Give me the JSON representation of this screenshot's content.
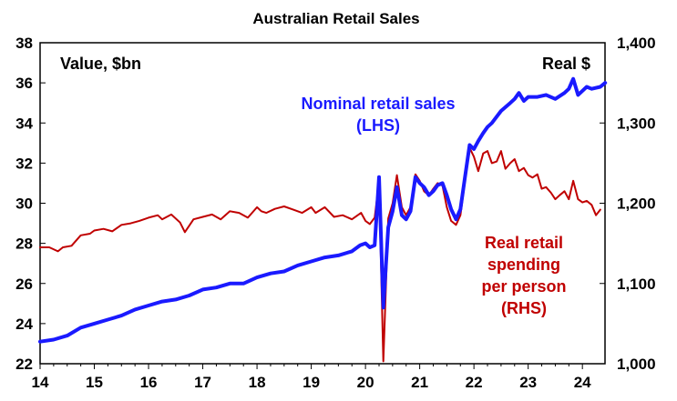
{
  "chart_data": {
    "type": "line",
    "title": "Australian Retail Sales",
    "left_axis_label": "Value, $bn",
    "right_axis_label": "Real $",
    "x_ticks": [
      "14",
      "15",
      "16",
      "17",
      "18",
      "19",
      "20",
      "21",
      "22",
      "23",
      "24"
    ],
    "ylim_left": [
      22,
      38
    ],
    "ylim_right": [
      1000,
      1400
    ],
    "y_ticks_left": [
      "22",
      "24",
      "26",
      "28",
      "30",
      "32",
      "34",
      "36",
      "38"
    ],
    "y_ticks_right": [
      "1,000",
      "1,100",
      "1,200",
      "1,300",
      "1,400"
    ],
    "x_range": [
      14.0,
      24.417
    ],
    "colors": {
      "nominal": "#1a1aff",
      "real": "#c00000",
      "axis": "#000000"
    },
    "series": [
      {
        "key": "nominal",
        "name_lines": [
          "Nominal retail sales",
          "(LHS)"
        ],
        "axis": "left",
        "points": [
          [
            14.0,
            23.1
          ],
          [
            14.25,
            23.2
          ],
          [
            14.5,
            23.4
          ],
          [
            14.75,
            23.8
          ],
          [
            15.0,
            24.0
          ],
          [
            15.25,
            24.2
          ],
          [
            15.5,
            24.4
          ],
          [
            15.75,
            24.7
          ],
          [
            16.0,
            24.9
          ],
          [
            16.25,
            25.1
          ],
          [
            16.5,
            25.2
          ],
          [
            16.75,
            25.4
          ],
          [
            17.0,
            25.7
          ],
          [
            17.25,
            25.8
          ],
          [
            17.5,
            26.0
          ],
          [
            17.75,
            26.0
          ],
          [
            18.0,
            26.3
          ],
          [
            18.25,
            26.5
          ],
          [
            18.5,
            26.6
          ],
          [
            18.75,
            26.9
          ],
          [
            19.0,
            27.1
          ],
          [
            19.25,
            27.3
          ],
          [
            19.5,
            27.4
          ],
          [
            19.75,
            27.6
          ],
          [
            19.9,
            27.9
          ],
          [
            20.0,
            28.0
          ],
          [
            20.08,
            27.8
          ],
          [
            20.17,
            27.9
          ],
          [
            20.25,
            31.3
          ],
          [
            20.33,
            24.8
          ],
          [
            20.42,
            28.8
          ],
          [
            20.5,
            29.6
          ],
          [
            20.58,
            30.8
          ],
          [
            20.67,
            29.4
          ],
          [
            20.75,
            29.2
          ],
          [
            20.83,
            29.6
          ],
          [
            20.92,
            31.3
          ],
          [
            21.0,
            31.0
          ],
          [
            21.08,
            30.8
          ],
          [
            21.17,
            30.4
          ],
          [
            21.25,
            30.6
          ],
          [
            21.33,
            30.9
          ],
          [
            21.42,
            31.0
          ],
          [
            21.5,
            30.4
          ],
          [
            21.58,
            29.7
          ],
          [
            21.67,
            29.2
          ],
          [
            21.75,
            29.7
          ],
          [
            21.83,
            31.2
          ],
          [
            21.92,
            32.9
          ],
          [
            22.0,
            32.7
          ],
          [
            22.08,
            33.1
          ],
          [
            22.17,
            33.5
          ],
          [
            22.25,
            33.8
          ],
          [
            22.33,
            34.0
          ],
          [
            22.5,
            34.6
          ],
          [
            22.67,
            35.0
          ],
          [
            22.75,
            35.2
          ],
          [
            22.83,
            35.5
          ],
          [
            22.92,
            35.1
          ],
          [
            23.0,
            35.3
          ],
          [
            23.17,
            35.3
          ],
          [
            23.33,
            35.4
          ],
          [
            23.5,
            35.2
          ],
          [
            23.67,
            35.5
          ],
          [
            23.75,
            35.7
          ],
          [
            23.83,
            36.2
          ],
          [
            23.92,
            35.4
          ],
          [
            24.0,
            35.6
          ],
          [
            24.08,
            35.8
          ],
          [
            24.17,
            35.7
          ],
          [
            24.33,
            35.8
          ],
          [
            24.42,
            36.0
          ]
        ]
      },
      {
        "key": "real",
        "name_lines": [
          "Real retail",
          "spending",
          "per person",
          "(RHS)"
        ],
        "axis": "right",
        "points": [
          [
            14.0,
            1145
          ],
          [
            14.17,
            1145
          ],
          [
            14.33,
            1140
          ],
          [
            14.42,
            1145
          ],
          [
            14.58,
            1147
          ],
          [
            14.75,
            1160
          ],
          [
            14.92,
            1162
          ],
          [
            15.0,
            1166
          ],
          [
            15.17,
            1168
          ],
          [
            15.33,
            1165
          ],
          [
            15.5,
            1173
          ],
          [
            15.67,
            1175
          ],
          [
            15.83,
            1178
          ],
          [
            16.0,
            1182
          ],
          [
            16.17,
            1185
          ],
          [
            16.25,
            1180
          ],
          [
            16.42,
            1186
          ],
          [
            16.58,
            1176
          ],
          [
            16.67,
            1164
          ],
          [
            16.83,
            1180
          ],
          [
            17.0,
            1183
          ],
          [
            17.17,
            1186
          ],
          [
            17.33,
            1180
          ],
          [
            17.5,
            1190
          ],
          [
            17.67,
            1188
          ],
          [
            17.83,
            1182
          ],
          [
            18.0,
            1195
          ],
          [
            18.08,
            1190
          ],
          [
            18.17,
            1188
          ],
          [
            18.33,
            1193
          ],
          [
            18.5,
            1196
          ],
          [
            18.67,
            1192
          ],
          [
            18.83,
            1188
          ],
          [
            19.0,
            1195
          ],
          [
            19.08,
            1188
          ],
          [
            19.25,
            1195
          ],
          [
            19.42,
            1183
          ],
          [
            19.58,
            1185
          ],
          [
            19.75,
            1180
          ],
          [
            19.92,
            1188
          ],
          [
            20.0,
            1178
          ],
          [
            20.08,
            1174
          ],
          [
            20.17,
            1182
          ],
          [
            20.25,
            1227
          ],
          [
            20.33,
            1003
          ],
          [
            20.42,
            1181
          ],
          [
            20.5,
            1200
          ],
          [
            20.58,
            1235
          ],
          [
            20.67,
            1195
          ],
          [
            20.75,
            1185
          ],
          [
            20.83,
            1195
          ],
          [
            20.92,
            1236
          ],
          [
            21.0,
            1228
          ],
          [
            21.08,
            1215
          ],
          [
            21.17,
            1210
          ],
          [
            21.25,
            1218
          ],
          [
            21.33,
            1225
          ],
          [
            21.42,
            1222
          ],
          [
            21.5,
            1195
          ],
          [
            21.58,
            1178
          ],
          [
            21.67,
            1173
          ],
          [
            21.75,
            1185
          ],
          [
            21.83,
            1225
          ],
          [
            21.92,
            1269
          ],
          [
            22.0,
            1258
          ],
          [
            22.08,
            1240
          ],
          [
            22.17,
            1262
          ],
          [
            22.25,
            1265
          ],
          [
            22.33,
            1250
          ],
          [
            22.42,
            1252
          ],
          [
            22.5,
            1265
          ],
          [
            22.58,
            1243
          ],
          [
            22.67,
            1250
          ],
          [
            22.75,
            1255
          ],
          [
            22.83,
            1240
          ],
          [
            22.92,
            1244
          ],
          [
            23.0,
            1235
          ],
          [
            23.08,
            1232
          ],
          [
            23.17,
            1236
          ],
          [
            23.25,
            1218
          ],
          [
            23.33,
            1220
          ],
          [
            23.42,
            1213
          ],
          [
            23.5,
            1205
          ],
          [
            23.58,
            1210
          ],
          [
            23.67,
            1215
          ],
          [
            23.75,
            1205
          ],
          [
            23.83,
            1228
          ],
          [
            23.92,
            1205
          ],
          [
            24.0,
            1201
          ],
          [
            24.08,
            1203
          ],
          [
            24.17,
            1198
          ],
          [
            24.25,
            1185
          ],
          [
            24.33,
            1192
          ]
        ]
      }
    ]
  }
}
